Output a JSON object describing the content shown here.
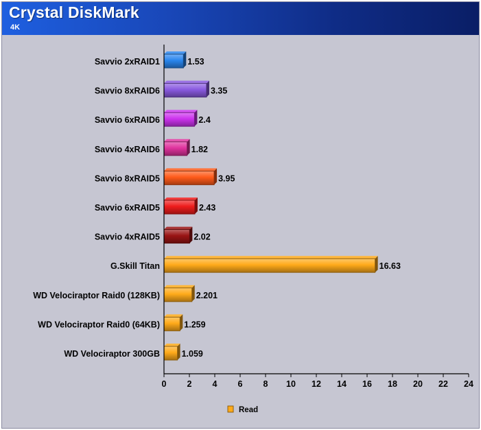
{
  "header": {
    "title": "Crystal DiskMark",
    "subtitle": "4K"
  },
  "chart_data": {
    "type": "bar",
    "orientation": "horizontal",
    "title": "Crystal DiskMark",
    "subtitle": "4K",
    "categories": [
      "Savvio 2xRAID1",
      "Savvio 8xRAID6",
      "Savvio 6xRAID6",
      "Savvio 4xRAID6",
      "Savvio 8xRAID5",
      "Savvio 6xRAID5",
      "Savvio 4xRAID5",
      "G.Skill Titan",
      "WD Velociraptor Raid0 (128KB)",
      "WD Velociraptor Raid0 (64KB)",
      "WD Velociraptor 300GB"
    ],
    "values": [
      1.53,
      3.35,
      2.4,
      1.82,
      3.95,
      2.43,
      2.02,
      16.63,
      2.201,
      1.259,
      1.059
    ],
    "value_labels": [
      "1.53",
      "3.35",
      "2.4",
      "1.82",
      "3.95",
      "2.43",
      "2.02",
      "16.63",
      "2.201",
      "1.259",
      "1.059"
    ],
    "bar_colors": [
      "#2a86ee",
      "#8a5ae0",
      "#cc33ee",
      "#e0339e",
      "#ff5a1a",
      "#ee1c1c",
      "#9a1414",
      "#ffaa1a",
      "#ffaa1a",
      "#ffaa1a",
      "#ffaa1a"
    ],
    "xlim": [
      0,
      24
    ],
    "xticks": [
      0,
      2,
      4,
      6,
      8,
      10,
      12,
      14,
      16,
      18,
      20,
      22,
      24
    ],
    "legend": [
      {
        "name": "Read",
        "color": "#ffaa1a"
      }
    ],
    "legend_position": "bottom-center",
    "grid": false
  }
}
